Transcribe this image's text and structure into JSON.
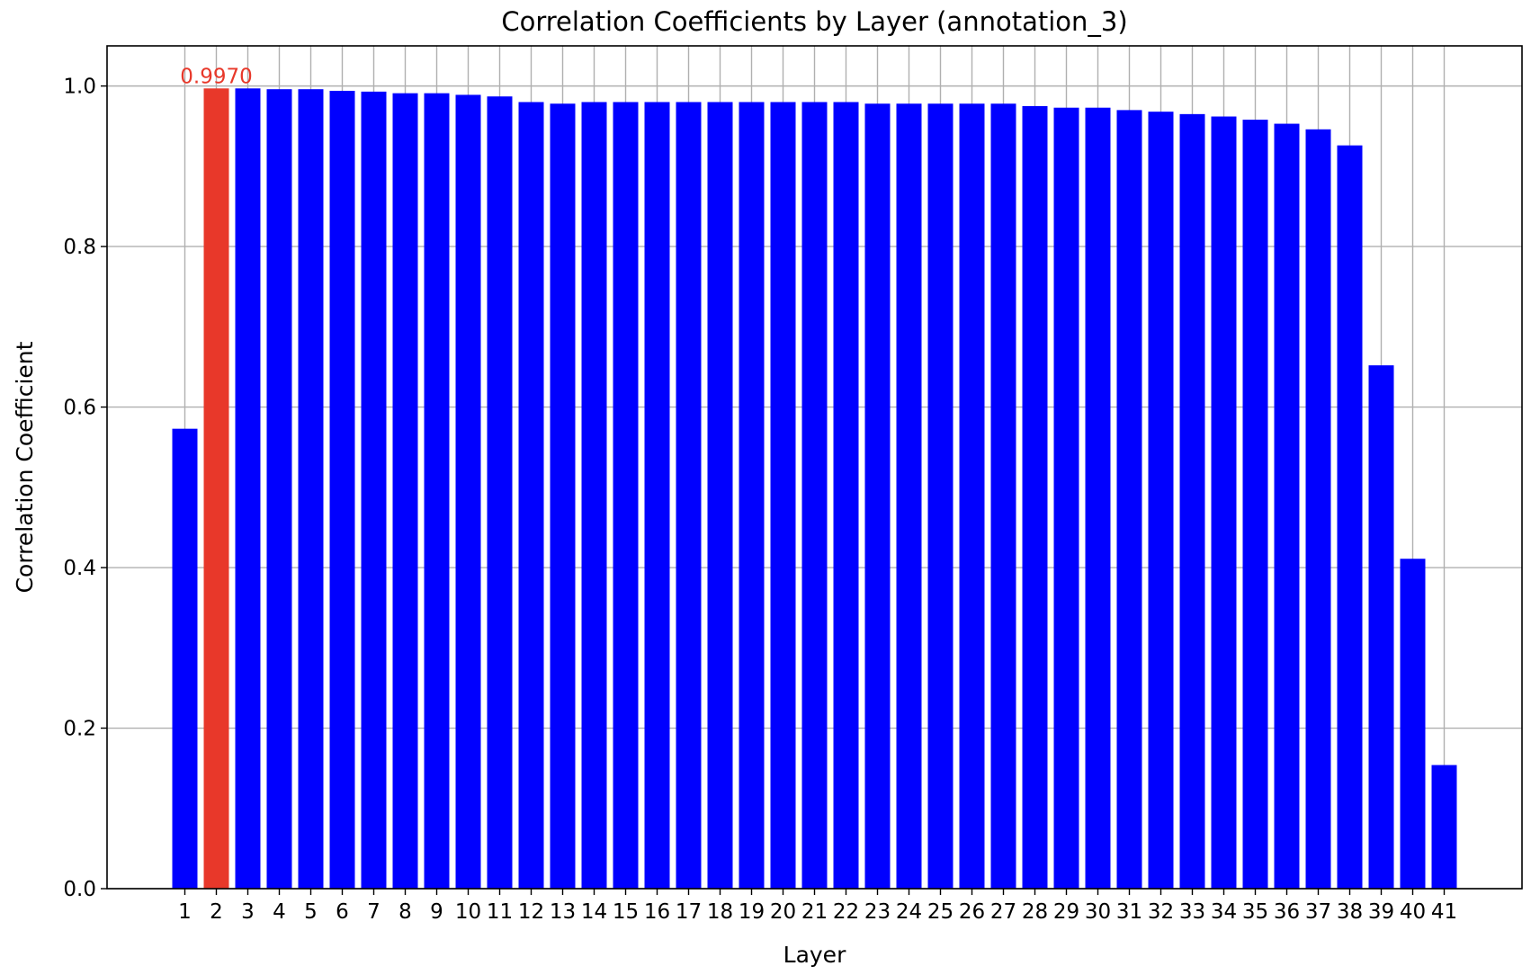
{
  "chart_data": {
    "type": "bar",
    "title": "Correlation Coefficients by Layer (annotation_3)",
    "xlabel": "Layer",
    "ylabel": "Correlation Coefficient",
    "ylim": [
      0,
      1.05
    ],
    "yticks": [
      0.0,
      0.2,
      0.4,
      0.6,
      0.8,
      1.0
    ],
    "ytick_labels": [
      "0.0",
      "0.2",
      "0.4",
      "0.6",
      "0.8",
      "1.0"
    ],
    "grid": true,
    "categories": [
      "1",
      "2",
      "3",
      "4",
      "5",
      "6",
      "7",
      "8",
      "9",
      "10",
      "11",
      "12",
      "13",
      "14",
      "15",
      "16",
      "17",
      "18",
      "19",
      "20",
      "21",
      "22",
      "23",
      "24",
      "25",
      "26",
      "27",
      "28",
      "29",
      "30",
      "31",
      "32",
      "33",
      "34",
      "35",
      "36",
      "37",
      "38",
      "39",
      "40",
      "41"
    ],
    "values": [
      0.573,
      0.997,
      0.997,
      0.996,
      0.996,
      0.994,
      0.993,
      0.991,
      0.991,
      0.989,
      0.987,
      0.98,
      0.978,
      0.98,
      0.98,
      0.98,
      0.98,
      0.98,
      0.98,
      0.98,
      0.98,
      0.98,
      0.978,
      0.978,
      0.978,
      0.978,
      0.978,
      0.975,
      0.973,
      0.973,
      0.97,
      0.968,
      0.965,
      0.962,
      0.958,
      0.953,
      0.946,
      0.926,
      0.652,
      0.411,
      0.154
    ],
    "highlight_index": 1,
    "annotation": {
      "text": "0.9970",
      "category": "2",
      "value": 0.997
    },
    "colors": {
      "bar": "#0000ff",
      "highlight": "#e8382a",
      "annotation": "#e8382a",
      "grid": "#b0b0b0",
      "axis": "#000000"
    }
  }
}
